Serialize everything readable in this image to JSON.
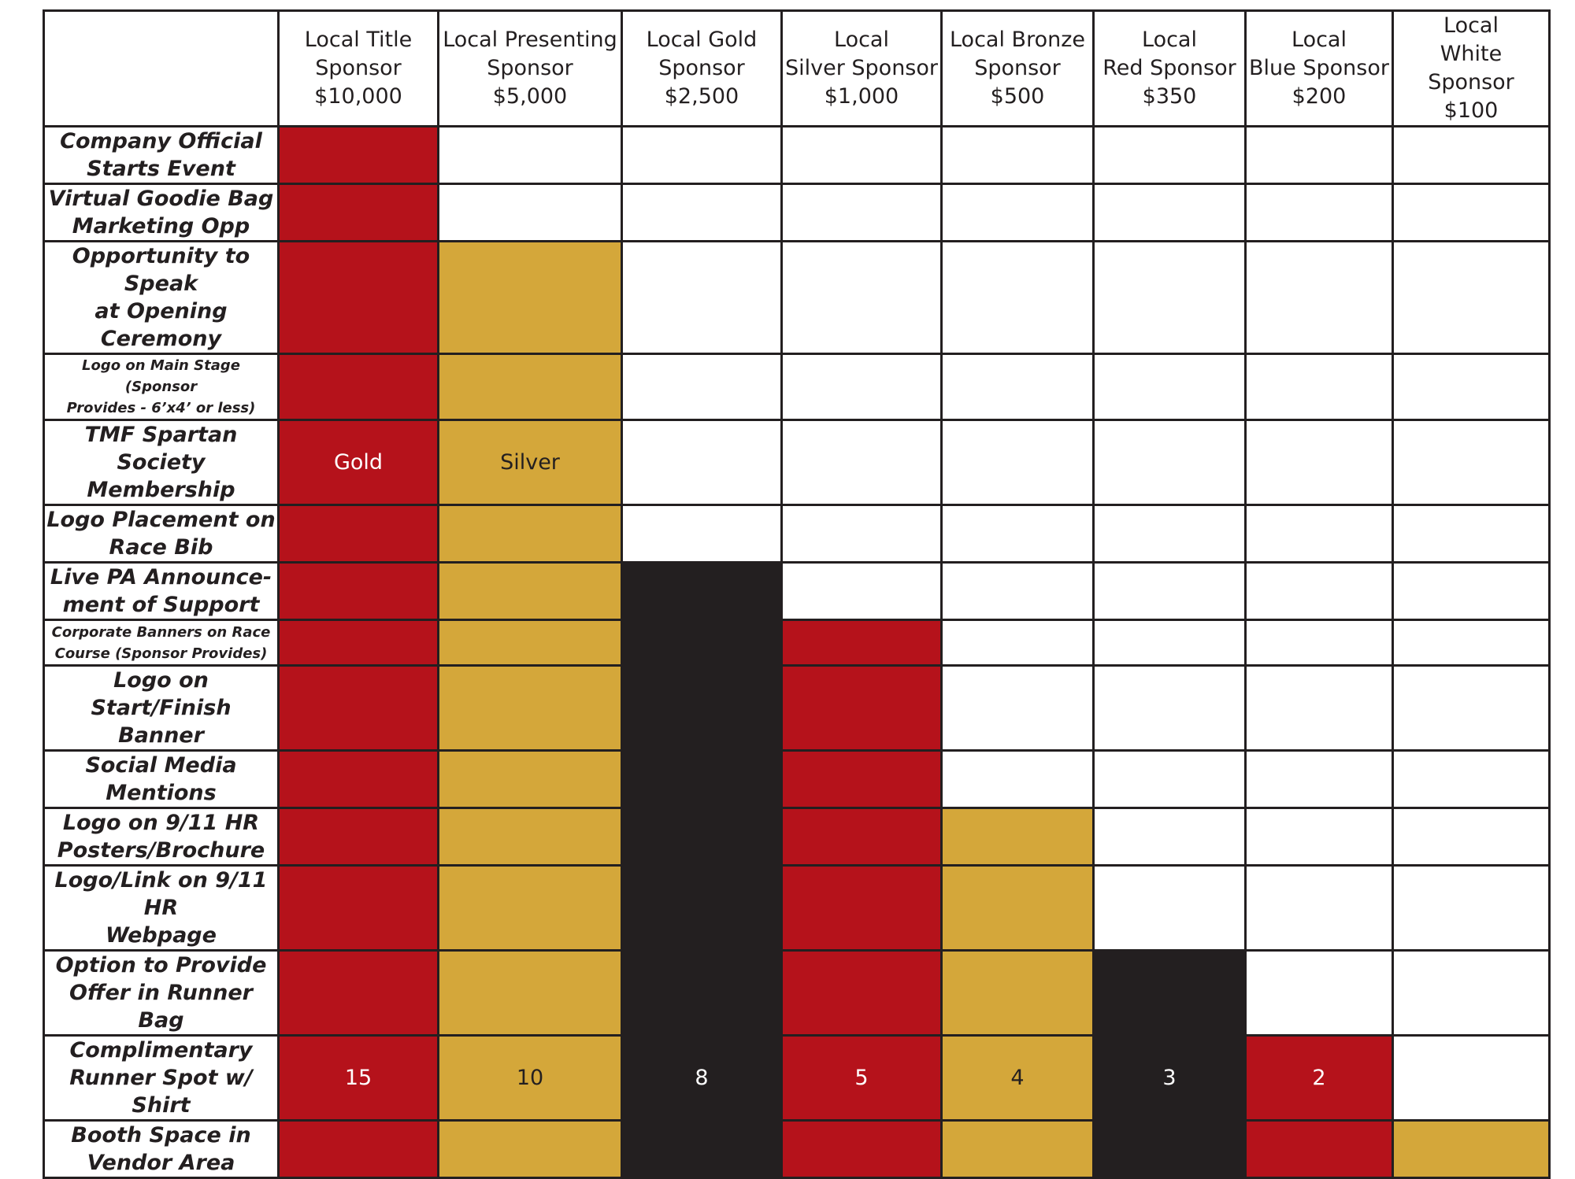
{
  "tiers": [
    {
      "name": "Local Title Sponsor",
      "lines": [
        "Local Title",
        "Sponsor"
      ],
      "price": "$10,000"
    },
    {
      "name": "Local Presenting Sponsor",
      "lines": [
        "Local Presenting",
        "Sponsor"
      ],
      "price": "$5,000"
    },
    {
      "name": "Local Gold Sponsor",
      "lines": [
        "Local Gold",
        "Sponsor"
      ],
      "price": "$2,500"
    },
    {
      "name": "Local Silver Sponsor",
      "lines": [
        "Local",
        "Silver Sponsor"
      ],
      "price": "$1,000"
    },
    {
      "name": "Local Bronze Sponsor",
      "lines": [
        "Local Bronze",
        "Sponsor"
      ],
      "price": "$500"
    },
    {
      "name": "Local Red Sponsor",
      "lines": [
        "Local",
        "Red Sponsor"
      ],
      "price": "$350"
    },
    {
      "name": "Local Blue Sponsor",
      "lines": [
        "Local",
        "Blue Sponsor"
      ],
      "price": "$200"
    },
    {
      "name": "Local White Sponsor",
      "lines": [
        "Local",
        "White Sponsor"
      ],
      "price": "$100"
    }
  ],
  "benefits": [
    {
      "lines": [
        "Company Official",
        "Starts Event"
      ],
      "small": false,
      "tiers_included": 1,
      "values": [
        "",
        "",
        "",
        "",
        "",
        "",
        "",
        ""
      ]
    },
    {
      "lines": [
        "Virtual Goodie Bag",
        "Marketing Opp"
      ],
      "small": false,
      "tiers_included": 1,
      "values": [
        "",
        "",
        "",
        "",
        "",
        "",
        "",
        ""
      ]
    },
    {
      "lines": [
        "Opportunity to Speak",
        "at Opening Ceremony"
      ],
      "small": false,
      "tiers_included": 2,
      "values": [
        "",
        "",
        "",
        "",
        "",
        "",
        "",
        ""
      ]
    },
    {
      "lines": [
        "Logo on Main Stage (Sponsor",
        "Provides - 6’x4’ or less)"
      ],
      "small": true,
      "tiers_included": 2,
      "values": [
        "",
        "",
        "",
        "",
        "",
        "",
        "",
        ""
      ]
    },
    {
      "lines": [
        "TMF Spartan Society",
        "Membership"
      ],
      "small": false,
      "tiers_included": 2,
      "values": [
        "Gold",
        "Silver",
        "",
        "",
        "",
        "",
        "",
        ""
      ]
    },
    {
      "lines": [
        "Logo Placement on",
        "Race Bib"
      ],
      "small": false,
      "tiers_included": 2,
      "values": [
        "",
        "",
        "",
        "",
        "",
        "",
        "",
        ""
      ]
    },
    {
      "lines": [
        "Live PA Announce-",
        "ment of Support"
      ],
      "small": false,
      "tiers_included": 3,
      "values": [
        "",
        "",
        "",
        "",
        "",
        "",
        "",
        ""
      ]
    },
    {
      "lines": [
        "Corporate Banners on Race",
        "Course (Sponsor Provides)"
      ],
      "small": true,
      "tiers_included": 4,
      "values": [
        "",
        "",
        "",
        "",
        "",
        "",
        "",
        ""
      ]
    },
    {
      "lines": [
        "Logo on Start/Finish",
        "Banner"
      ],
      "small": false,
      "tiers_included": 4,
      "values": [
        "",
        "",
        "",
        "",
        "",
        "",
        "",
        ""
      ]
    },
    {
      "lines": [
        "Social Media",
        "Mentions"
      ],
      "small": false,
      "tiers_included": 4,
      "values": [
        "",
        "",
        "",
        "",
        "",
        "",
        "",
        ""
      ]
    },
    {
      "lines": [
        "Logo on 9/11 HR",
        "Posters/Brochure"
      ],
      "small": false,
      "tiers_included": 5,
      "values": [
        "",
        "",
        "",
        "",
        "",
        "",
        "",
        ""
      ]
    },
    {
      "lines": [
        "Logo/Link on 9/11 HR",
        "Webpage"
      ],
      "small": false,
      "tiers_included": 5,
      "values": [
        "",
        "",
        "",
        "",
        "",
        "",
        "",
        ""
      ]
    },
    {
      "lines": [
        "Option to Provide",
        "Offer in Runner Bag"
      ],
      "small": false,
      "tiers_included": 6,
      "values": [
        "",
        "",
        "",
        "",
        "",
        "",
        "",
        ""
      ]
    },
    {
      "lines": [
        "Complimentary",
        "Runner Spot w/ Shirt"
      ],
      "small": false,
      "tiers_included": 7,
      "values": [
        "15",
        "10",
        "8",
        "5",
        "4",
        "3",
        "2",
        ""
      ]
    },
    {
      "lines": [
        "Booth Space in",
        "Vendor Area"
      ],
      "small": false,
      "tiers_included": 8,
      "values": [
        "",
        "",
        "",
        "",
        "",
        "",
        "",
        ""
      ]
    }
  ],
  "colors": {
    "red": "#b5121b",
    "gold": "#d4a73a",
    "black": "#231f20",
    "white": "#ffffff",
    "column_pattern": [
      "red",
      "gold",
      "black",
      "red",
      "gold",
      "black",
      "red",
      "gold"
    ]
  }
}
